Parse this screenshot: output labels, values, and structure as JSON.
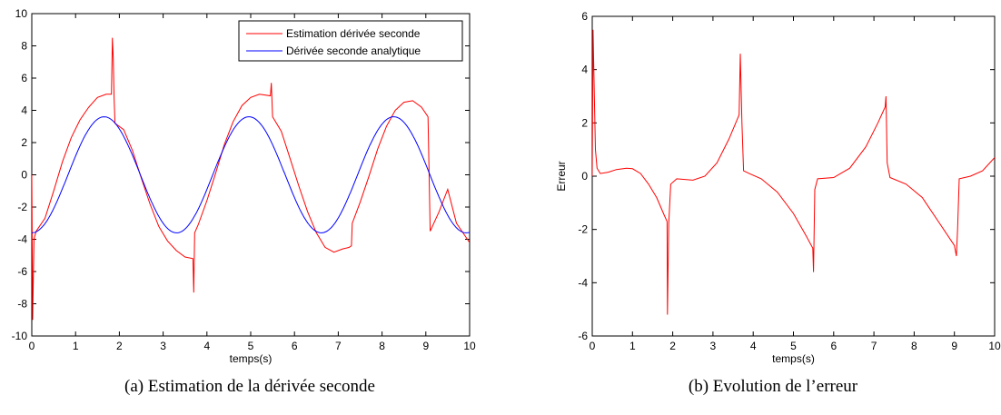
{
  "chart_data": [
    {
      "type": "line",
      "xlabel": "temps(s)",
      "ylabel": "",
      "xlim": [
        0,
        10
      ],
      "ylim": [
        -10,
        10
      ],
      "xticks": [
        0,
        1,
        2,
        3,
        4,
        5,
        6,
        7,
        8,
        9,
        10
      ],
      "yticks": [
        -10,
        -8,
        -6,
        -4,
        -2,
        0,
        2,
        4,
        6,
        8,
        10
      ],
      "grid": false,
      "legend_position": "top-right",
      "caption": "(a)  Estimation de la dérivée seconde",
      "series": [
        {
          "name": "Estimation dérivée seconde",
          "color": "#ff0000",
          "points": [
            [
              0,
              0
            ],
            [
              0.02,
              -9
            ],
            [
              0.05,
              -4
            ],
            [
              0.1,
              -3.5
            ],
            [
              0.3,
              -2.7
            ],
            [
              0.5,
              -1
            ],
            [
              0.7,
              0.8
            ],
            [
              0.9,
              2.3
            ],
            [
              1.1,
              3.4
            ],
            [
              1.3,
              4.2
            ],
            [
              1.5,
              4.8
            ],
            [
              1.7,
              5.0
            ],
            [
              1.82,
              5.0
            ],
            [
              1.84,
              8.5
            ],
            [
              1.86,
              7.2
            ],
            [
              1.88,
              4.8
            ],
            [
              1.9,
              3.2
            ],
            [
              2.1,
              2.8
            ],
            [
              2.3,
              1.5
            ],
            [
              2.5,
              -0.2
            ],
            [
              2.7,
              -1.8
            ],
            [
              2.9,
              -3.2
            ],
            [
              3.1,
              -4.1
            ],
            [
              3.3,
              -4.7
            ],
            [
              3.5,
              -5.1
            ],
            [
              3.68,
              -5.2
            ],
            [
              3.7,
              -7.3
            ],
            [
              3.72,
              -3.6
            ],
            [
              3.8,
              -3.1
            ],
            [
              4.0,
              -1.6
            ],
            [
              4.2,
              0.1
            ],
            [
              4.4,
              1.9
            ],
            [
              4.6,
              3.3
            ],
            [
              4.8,
              4.3
            ],
            [
              5.0,
              4.8
            ],
            [
              5.2,
              5.0
            ],
            [
              5.45,
              4.9
            ],
            [
              5.47,
              5.7
            ],
            [
              5.5,
              3.6
            ],
            [
              5.7,
              2.7
            ],
            [
              5.9,
              1.0
            ],
            [
              6.1,
              -0.7
            ],
            [
              6.3,
              -2.3
            ],
            [
              6.5,
              -3.6
            ],
            [
              6.7,
              -4.5
            ],
            [
              6.9,
              -4.8
            ],
            [
              7.1,
              -4.6
            ],
            [
              7.25,
              -4.5
            ],
            [
              7.3,
              -4.4
            ],
            [
              7.32,
              -3.0
            ],
            [
              7.5,
              -1.7
            ],
            [
              7.7,
              -0.1
            ],
            [
              7.9,
              1.6
            ],
            [
              8.1,
              3.0
            ],
            [
              8.3,
              4.0
            ],
            [
              8.5,
              4.5
            ],
            [
              8.7,
              4.6
            ],
            [
              8.9,
              4.2
            ],
            [
              9.05,
              3.6
            ],
            [
              9.1,
              -3.5
            ],
            [
              9.3,
              -2.3
            ],
            [
              9.5,
              -0.9
            ],
            [
              9.7,
              -3.0
            ],
            [
              10,
              -4.2
            ]
          ]
        },
        {
          "name": "Dérivée seconde analytique",
          "color": "#0000ff",
          "function": "-3.6*cos(1.9*t)"
        }
      ]
    },
    {
      "type": "line",
      "xlabel": "temps(s)",
      "ylabel": "Erreur",
      "xlim": [
        0,
        10
      ],
      "ylim": [
        -6,
        6
      ],
      "xticks": [
        0,
        1,
        2,
        3,
        4,
        5,
        6,
        7,
        8,
        9,
        10
      ],
      "yticks": [
        -6,
        -4,
        -2,
        0,
        2,
        4,
        6
      ],
      "grid": false,
      "caption": "(b)  Evolution de l’erreur",
      "series": [
        {
          "name": "",
          "color": "#ff0000",
          "points": [
            [
              0,
              0
            ],
            [
              0.02,
              5.5
            ],
            [
              0.05,
              3.2
            ],
            [
              0.08,
              1.0
            ],
            [
              0.12,
              0.3
            ],
            [
              0.2,
              0.1
            ],
            [
              0.4,
              0.15
            ],
            [
              0.6,
              0.25
            ],
            [
              0.85,
              0.3
            ],
            [
              1.0,
              0.28
            ],
            [
              1.2,
              0.1
            ],
            [
              1.4,
              -0.3
            ],
            [
              1.6,
              -0.8
            ],
            [
              1.8,
              -1.5
            ],
            [
              1.86,
              -1.7
            ],
            [
              1.87,
              -5.2
            ],
            [
              1.88,
              -4.0
            ],
            [
              1.9,
              -1.8
            ],
            [
              1.95,
              -0.3
            ],
            [
              2.1,
              -0.1
            ],
            [
              2.5,
              -0.15
            ],
            [
              2.8,
              0.0
            ],
            [
              3.1,
              0.5
            ],
            [
              3.4,
              1.4
            ],
            [
              3.65,
              2.3
            ],
            [
              3.68,
              4.6
            ],
            [
              3.72,
              2.0
            ],
            [
              3.76,
              0.2
            ],
            [
              3.9,
              0.1
            ],
            [
              4.2,
              -0.1
            ],
            [
              4.6,
              -0.6
            ],
            [
              5.0,
              -1.4
            ],
            [
              5.3,
              -2.2
            ],
            [
              5.48,
              -2.7
            ],
            [
              5.5,
              -3.6
            ],
            [
              5.53,
              -0.5
            ],
            [
              5.6,
              -0.1
            ],
            [
              6.0,
              -0.05
            ],
            [
              6.4,
              0.3
            ],
            [
              6.8,
              1.1
            ],
            [
              7.1,
              2.0
            ],
            [
              7.28,
              2.6
            ],
            [
              7.3,
              3.0
            ],
            [
              7.33,
              0.5
            ],
            [
              7.4,
              -0.05
            ],
            [
              7.8,
              -0.3
            ],
            [
              8.2,
              -0.8
            ],
            [
              8.6,
              -1.7
            ],
            [
              9.0,
              -2.6
            ],
            [
              9.05,
              -3.0
            ],
            [
              9.08,
              -2.0
            ],
            [
              9.12,
              -0.1
            ],
            [
              9.4,
              0.0
            ],
            [
              9.7,
              0.2
            ],
            [
              10,
              0.7
            ]
          ]
        }
      ]
    }
  ]
}
